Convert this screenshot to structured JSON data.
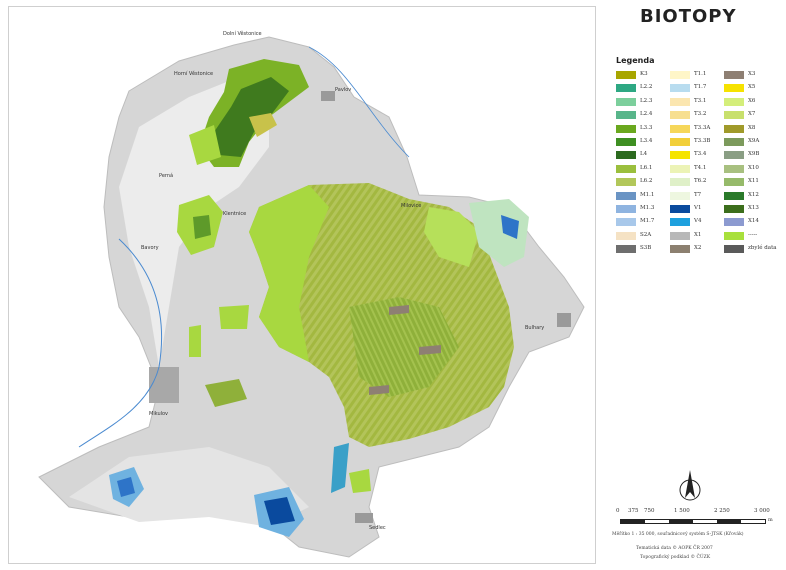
{
  "title": "BIOTOPY",
  "legend_title": "Legenda",
  "legend": [
    [
      {
        "code": "K3",
        "color": "#a8a600"
      },
      {
        "code": "L2.2",
        "color": "#2ea883"
      },
      {
        "code": "L2.3",
        "color": "#7ccf9c"
      },
      {
        "code": "L2.4",
        "color": "#58b58a"
      },
      {
        "code": "L3.3",
        "color": "#6aa81e"
      },
      {
        "code": "L3.4",
        "color": "#3e8f22"
      },
      {
        "code": "L4",
        "color": "#2c6a1f"
      },
      {
        "code": "L6.1",
        "color": "#9bbf3d"
      },
      {
        "code": "L6.2",
        "color": "#b2c75a"
      },
      {
        "code": "M1.1",
        "color": "#6a94c4"
      },
      {
        "code": "M1.3",
        "color": "#8fb4e0"
      },
      {
        "code": "M1.7",
        "color": "#a8c8ea"
      },
      {
        "code": "S2A",
        "color": "#f5e2c4"
      },
      {
        "code": "S3B",
        "color": "#6e6e6e"
      }
    ],
    [
      {
        "code": "T1.1",
        "color": "#fff6c8"
      },
      {
        "code": "T1.7",
        "color": "#b8dcef"
      },
      {
        "code": "T3.1",
        "color": "#fbe6b0"
      },
      {
        "code": "T3.2",
        "color": "#f7df90"
      },
      {
        "code": "T3.3A",
        "color": "#f6d75a"
      },
      {
        "code": "T3.3B",
        "color": "#f2cf3a"
      },
      {
        "code": "T3.4",
        "color": "#f5e400"
      },
      {
        "code": "T4.1",
        "color": "#ecf3b6"
      },
      {
        "code": "T6.2",
        "color": "#dff0c8"
      },
      {
        "code": "T7",
        "color": "#eef7e0"
      },
      {
        "code": "V1",
        "color": "#0a4a9e"
      },
      {
        "code": "V4",
        "color": "#1ea0de"
      },
      {
        "code": "X1",
        "color": "#b8b8b8"
      },
      {
        "code": "X2",
        "color": "#8c8070"
      }
    ],
    [
      {
        "code": "X3",
        "color": "#8e7f73"
      },
      {
        "code": "X5",
        "color": "#f6e200"
      },
      {
        "code": "X6",
        "color": "#d4ee7a"
      },
      {
        "code": "X7",
        "color": "#c8e06c"
      },
      {
        "code": "X8",
        "color": "#a09a2a"
      },
      {
        "code": "X9A",
        "color": "#7c9a5c"
      },
      {
        "code": "X9B",
        "color": "#8a9e84"
      },
      {
        "code": "X10",
        "color": "#a8c080"
      },
      {
        "code": "X11",
        "color": "#96ba6a"
      },
      {
        "code": "X12",
        "color": "#2a7a2a"
      },
      {
        "code": "X13",
        "color": "#3c6e1c"
      },
      {
        "code": "X14",
        "color": "#8c9ad0"
      },
      {
        "code": "-----",
        "color": "#a8e03c"
      },
      {
        "code": "zbylé data",
        "color": "#5a5a5a"
      }
    ]
  ],
  "places": [
    {
      "name": "Dolní Věstonice"
    },
    {
      "name": "Horní Věstonice"
    },
    {
      "name": "Pavlov"
    },
    {
      "name": "Perná"
    },
    {
      "name": "Klentnice"
    },
    {
      "name": "Bavory"
    },
    {
      "name": "Milovice"
    },
    {
      "name": "Mikulov"
    },
    {
      "name": "Bulhary"
    },
    {
      "name": "Sedlec"
    }
  ],
  "scale_labels": [
    "0",
    "375",
    "750",
    "1 500",
    "2 250",
    "3 000"
  ],
  "scale_unit": "m",
  "notes": [
    "Měřítko 1 : 35 000, souřadnicový systém S-JTSK (Křovák)",
    "Tematická data © AOPK ČR 2007",
    "Topografický podklad © ČÚZK"
  ],
  "colors": {
    "hillshade": "#d9d9d9",
    "forest": "#9ab833",
    "bright": "#a8e03c",
    "dark": "#3f7a1e",
    "water": "#2e74c8"
  }
}
